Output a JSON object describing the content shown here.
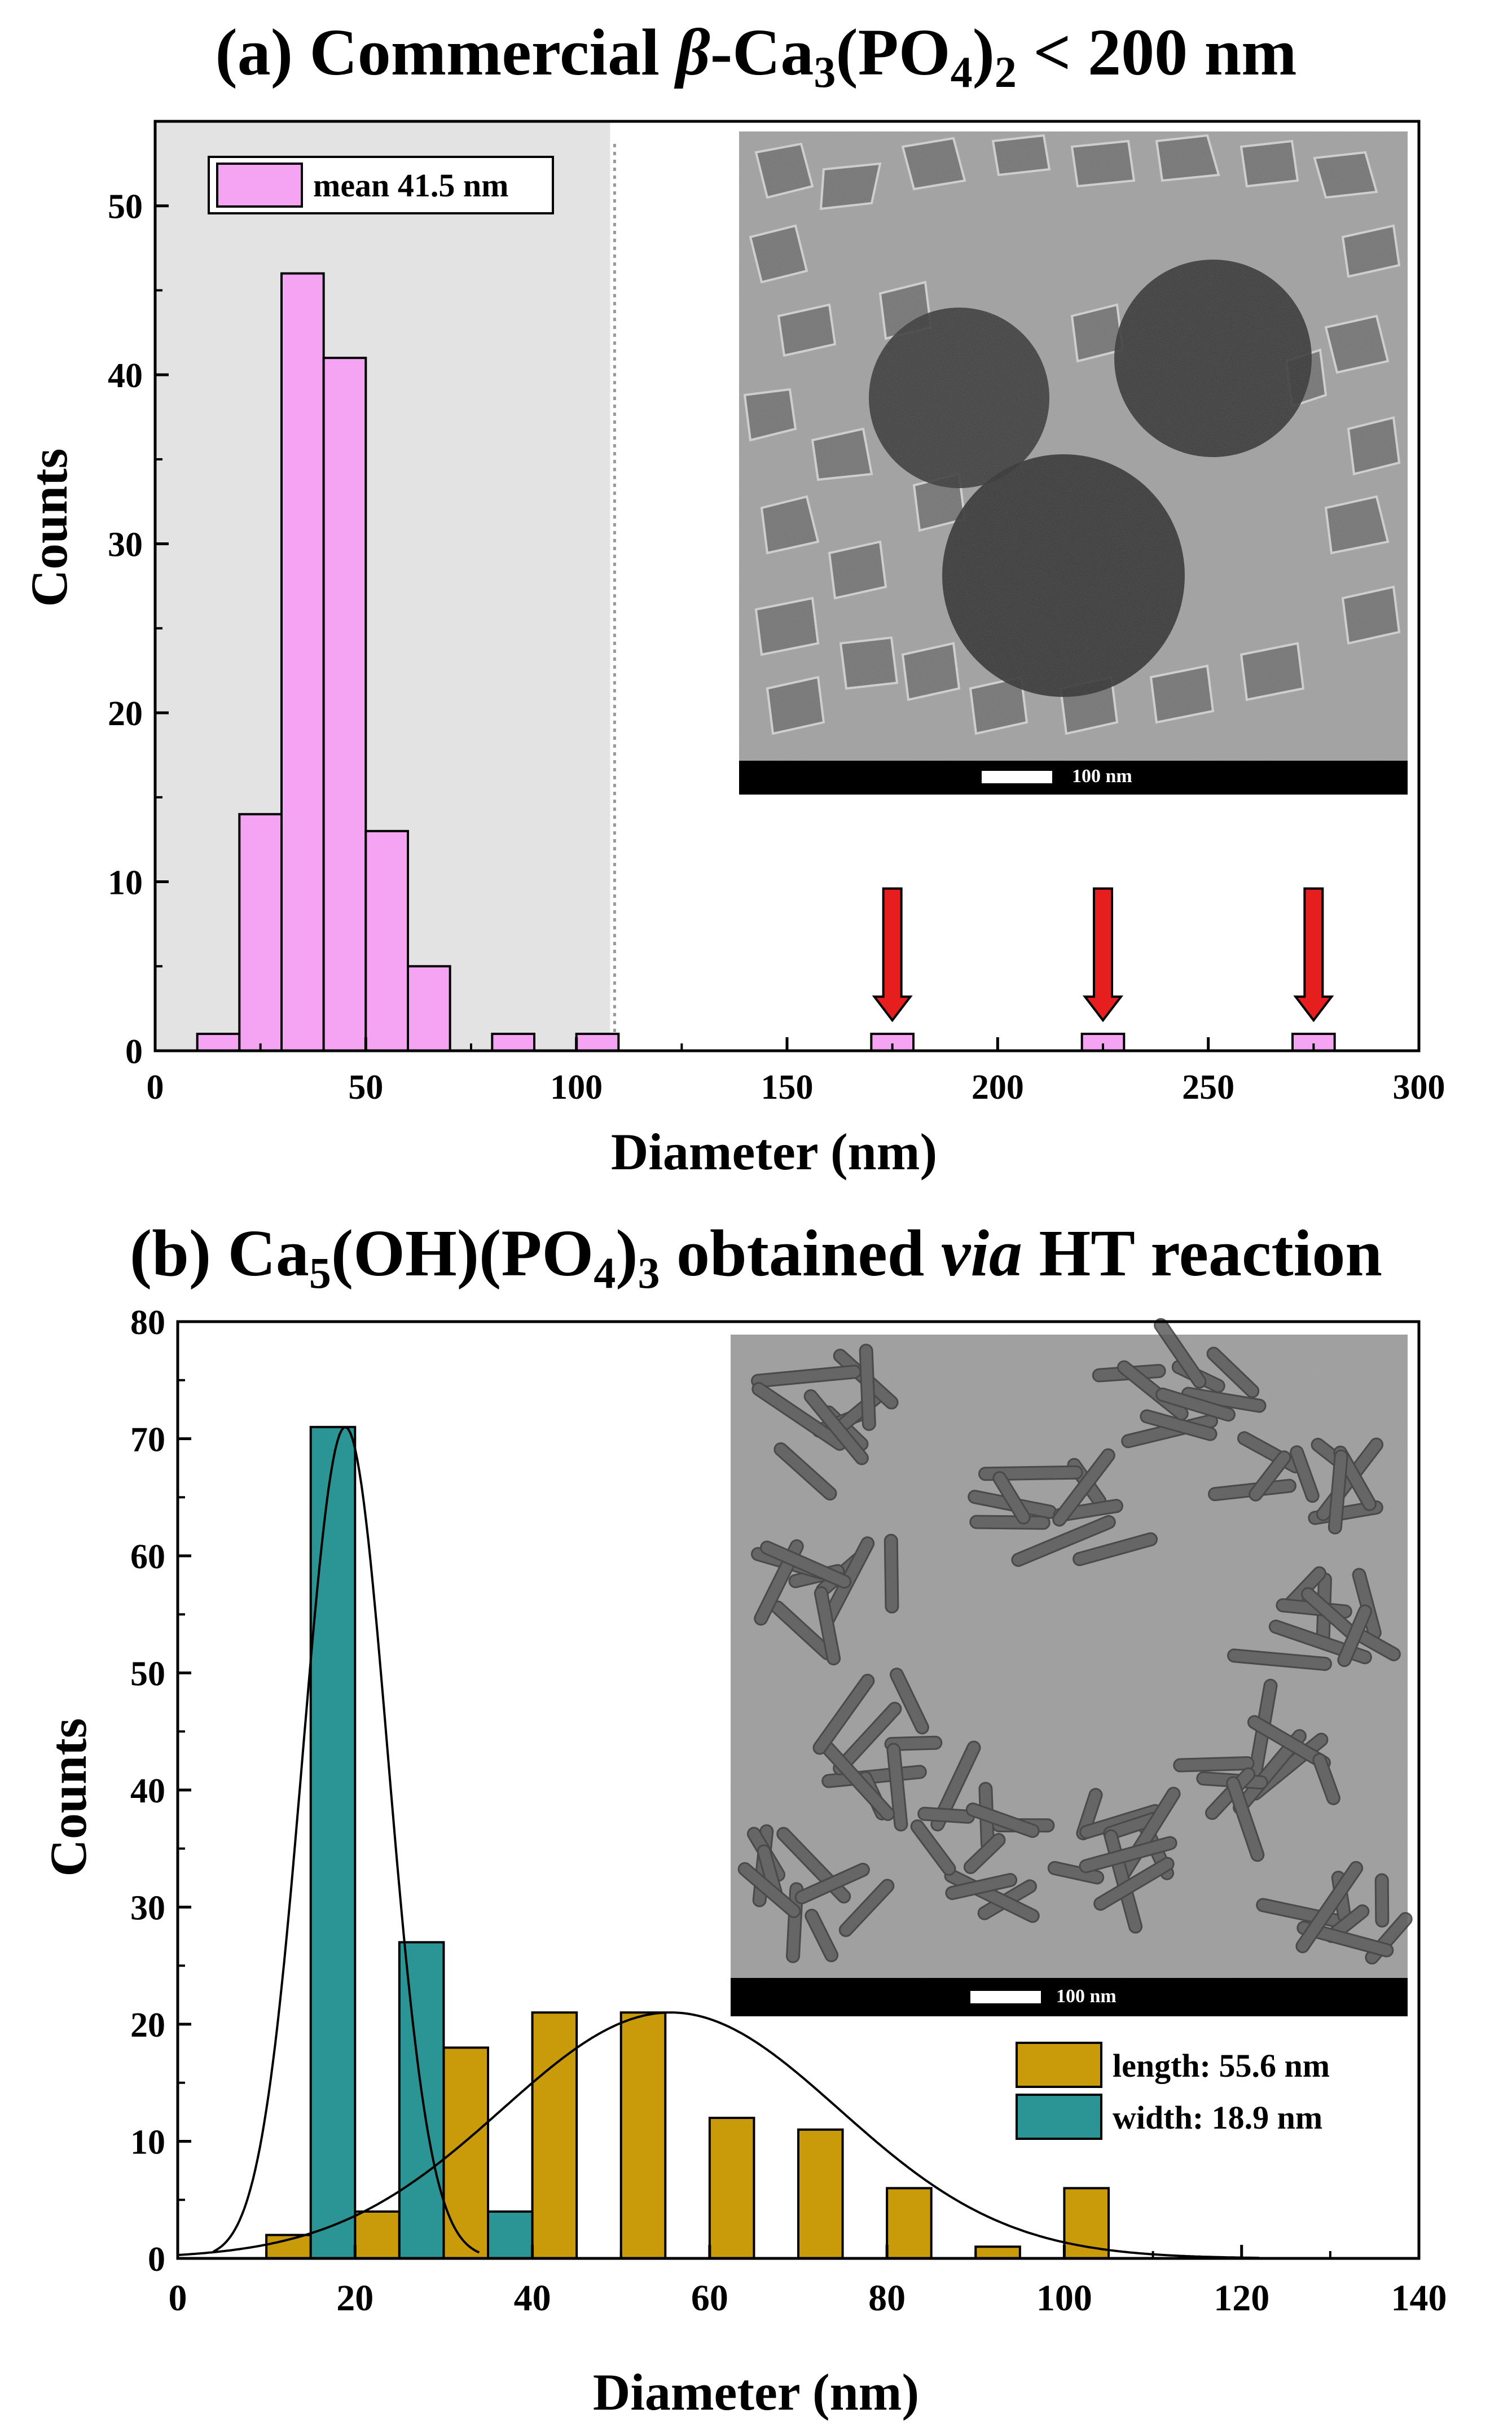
{
  "panel_a": {
    "title_prefix": "(a) Commercial ",
    "title_beta": "β",
    "title_ca": "-Ca",
    "title_sub3": "3",
    "title_po": "(PO",
    "title_sub4": "4",
    "title_close": ")",
    "title_sub2": "2",
    "title_suffix": " < 200 nm",
    "inset_scale_label": "100 nm"
  },
  "panel_b": {
    "title_prefix": "(b) Ca",
    "title_sub5": "5",
    "title_mid": "(OH)(PO",
    "title_sub4": "4",
    "title_close": ")",
    "title_sub3": "3",
    "title_obtained": " obtained ",
    "title_via": "via",
    "title_suffix": " HT reaction",
    "inset_scale_label": "100 nm"
  },
  "colors": {
    "pink": "#f5a3f3",
    "gold": "#c99a0a",
    "teal": "#2b9595",
    "shade": "#e3e3e3",
    "arrow": "#e61e1e"
  },
  "chart_data": [
    {
      "type": "bar",
      "title": "(a) Commercial β-Ca3(PO4)2 < 200 nm",
      "xlabel": "Diameter (nm)",
      "ylabel": "Counts",
      "xlim": [
        0,
        300
      ],
      "ylim": [
        0,
        55
      ],
      "xticks": [
        0,
        50,
        100,
        150,
        200,
        250,
        300
      ],
      "yticks": [
        0,
        10,
        20,
        30,
        40,
        50
      ],
      "bin_width": 10,
      "bins": [
        {
          "x": 15,
          "count": 1
        },
        {
          "x": 25,
          "count": 14
        },
        {
          "x": 35,
          "count": 46
        },
        {
          "x": 45,
          "count": 41
        },
        {
          "x": 55,
          "count": 13
        },
        {
          "x": 65,
          "count": 5
        },
        {
          "x": 85,
          "count": 1
        },
        {
          "x": 105,
          "count": 1
        },
        {
          "x": 175,
          "count": 1
        },
        {
          "x": 225,
          "count": 1
        },
        {
          "x": 275,
          "count": 1
        }
      ],
      "legend": [
        "mean 41.5 nm"
      ],
      "shaded_region_x": [
        0,
        108
      ],
      "arrows_at_x": [
        175,
        225,
        275
      ]
    },
    {
      "type": "bar",
      "title": "(b) Ca5(OH)(PO4)3 obtained via HT reaction",
      "xlabel": "Diameter (nm)",
      "ylabel": "Counts",
      "xlim": [
        0,
        140
      ],
      "ylim": [
        0,
        80
      ],
      "xticks": [
        0,
        20,
        40,
        60,
        80,
        100,
        120,
        140
      ],
      "yticks": [
        0,
        10,
        20,
        30,
        40,
        50,
        60,
        70,
        80
      ],
      "series": [
        {
          "name": "length: 55.6 nm",
          "bin_width": 5,
          "x": [
            12.5,
            22.5,
            32.5,
            42.5,
            52.5,
            62.5,
            72.5,
            82.5,
            92.5,
            102.5
          ],
          "values": [
            2,
            4,
            18,
            21,
            21,
            12,
            11,
            6,
            1,
            6
          ],
          "fit": {
            "kind": "gaussian",
            "mean": 55.6,
            "sigma": 19.0,
            "amplitude": 21
          }
        },
        {
          "name": "width: 18.9 nm",
          "bin_width": 5,
          "x": [
            17.5,
            27.5,
            37.5
          ],
          "values": [
            71,
            27,
            4
          ],
          "fit": {
            "kind": "gaussian",
            "mean": 18.9,
            "sigma": 4.8,
            "amplitude": 71
          }
        }
      ]
    }
  ]
}
